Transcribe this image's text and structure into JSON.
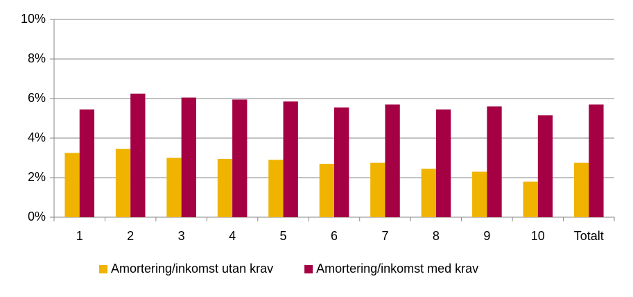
{
  "chart_data": {
    "type": "bar",
    "categories": [
      "1",
      "2",
      "3",
      "4",
      "5",
      "6",
      "7",
      "8",
      "9",
      "10",
      "Totalt"
    ],
    "series": [
      {
        "name": "Amortering/inkomst utan krav",
        "color": "#f0b400",
        "values": [
          3.25,
          3.45,
          3.0,
          2.95,
          2.9,
          2.7,
          2.75,
          2.45,
          2.3,
          1.8,
          2.75
        ]
      },
      {
        "name": "Amortering/inkomst med krav",
        "color": "#a50044",
        "values": [
          5.45,
          6.25,
          6.05,
          5.95,
          5.85,
          5.55,
          5.7,
          5.45,
          5.6,
          5.15,
          5.7
        ]
      }
    ],
    "ylim": [
      0,
      10
    ],
    "yticks": [
      {
        "value": 0,
        "label": "0%"
      },
      {
        "value": 2,
        "label": "2%"
      },
      {
        "value": 4,
        "label": "4%"
      },
      {
        "value": 6,
        "label": "6%"
      },
      {
        "value": 8,
        "label": "8%"
      },
      {
        "value": 10,
        "label": "10%"
      }
    ],
    "grid": true,
    "legend": "bottom"
  }
}
